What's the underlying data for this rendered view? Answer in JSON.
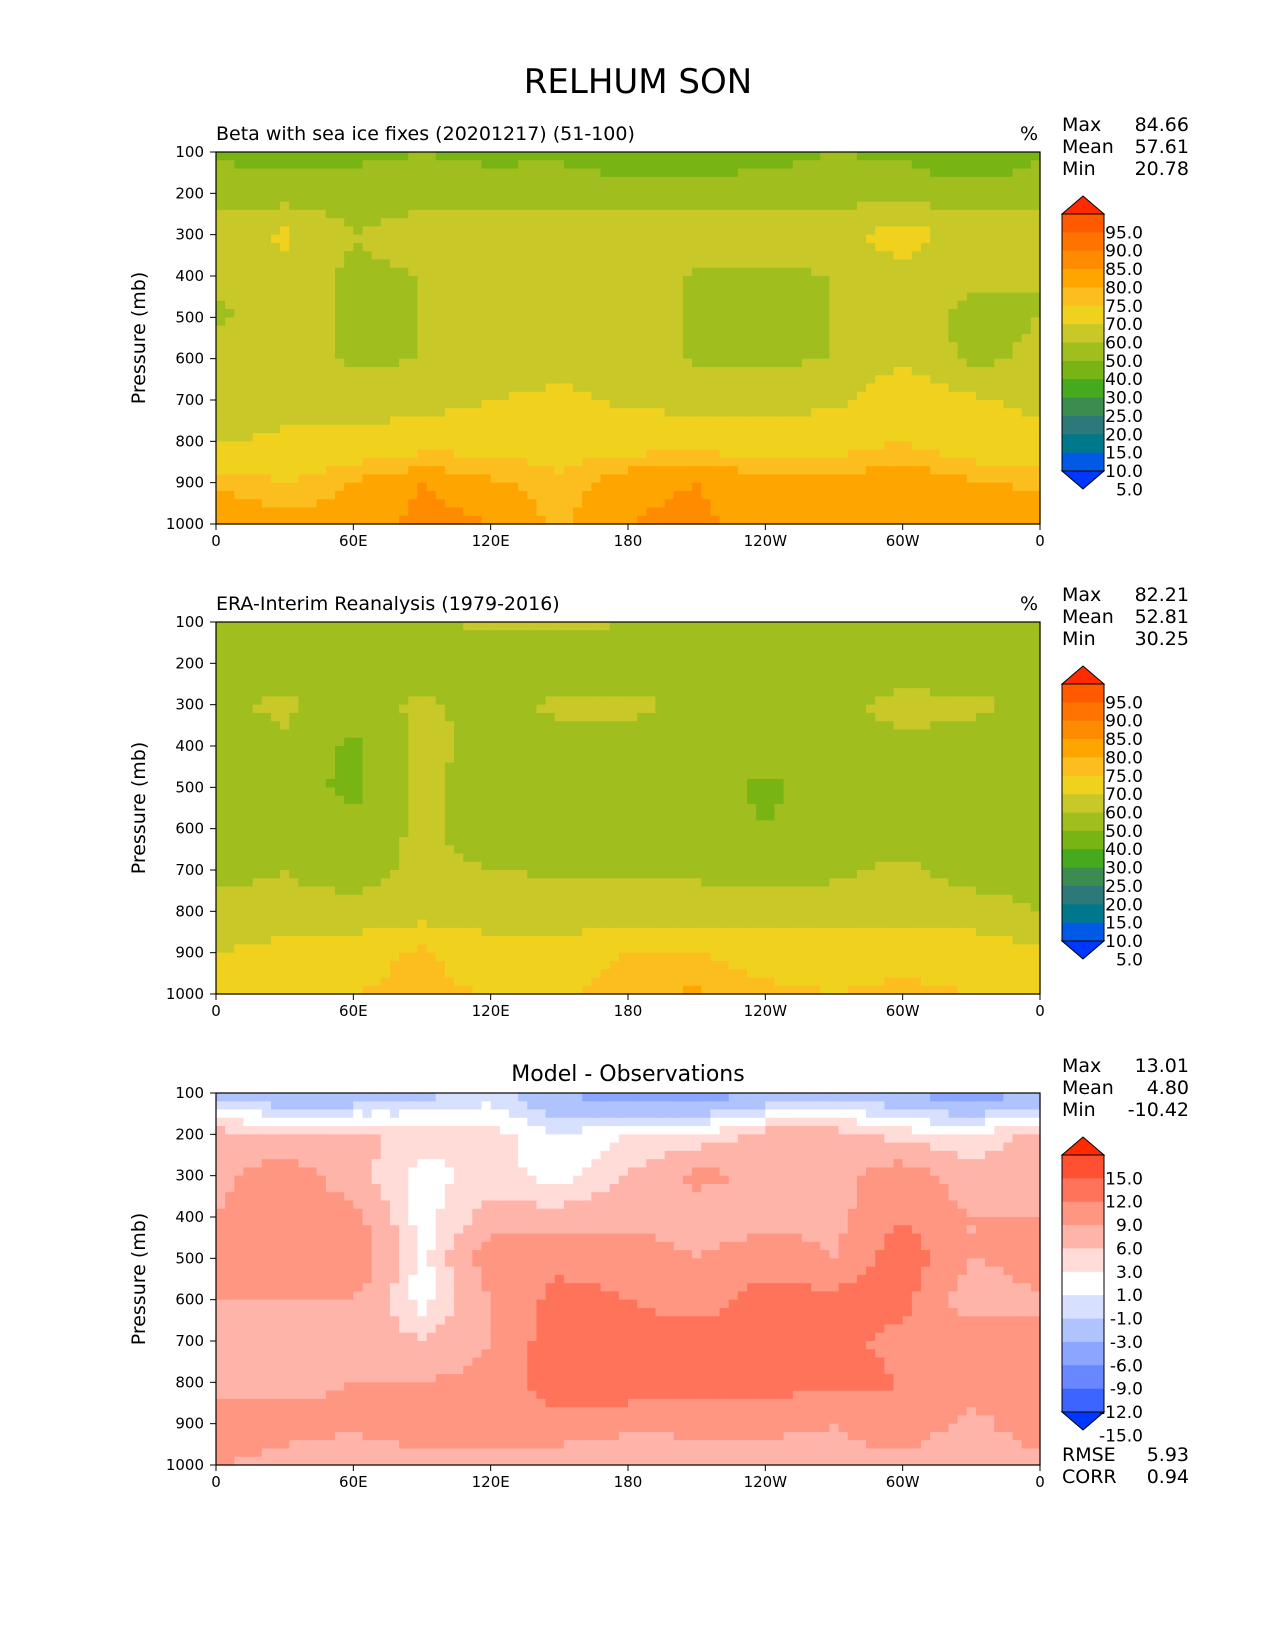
{
  "figure": {
    "title": "RELHUM SON",
    "xticks": [
      "0",
      "60E",
      "120E",
      "180",
      "120W",
      "60W",
      "0"
    ],
    "yticks": [
      "100",
      "200",
      "300",
      "400",
      "500",
      "600",
      "700",
      "800",
      "900",
      "1000"
    ],
    "ylabel": "Pressure (mb)"
  },
  "panels": [
    {
      "id": "model",
      "title": "Beta with sea ice fixes (20201217) (51-100)",
      "units": "%",
      "stats": [
        {
          "label": "Max",
          "value": "84.66"
        },
        {
          "label": "Mean",
          "value": "57.61"
        },
        {
          "label": "Min",
          "value": "20.78"
        }
      ],
      "colorbar": {
        "labels": [
          "95.0",
          "90.0",
          "85.0",
          "80.0",
          "75.0",
          "70.0",
          "60.0",
          "50.0",
          "40.0",
          "30.0",
          "25.0",
          "20.0",
          "15.0",
          "10.0",
          "5.0"
        ],
        "colors": [
          "#ff2a00",
          "#ff5a00",
          "#ff7300",
          "#ff8c00",
          "#ffa500",
          "#fcbe1e",
          "#f0d21e",
          "#c8c828",
          "#a0be1e",
          "#78b414",
          "#46aa1e",
          "#3c8c50",
          "#2d7878",
          "#00788c",
          "#005ae6",
          "#0037ff"
        ]
      }
    },
    {
      "id": "obs",
      "title": "ERA-Interim Reanalysis (1979-2016)",
      "units": "%",
      "stats": [
        {
          "label": "Max",
          "value": "82.21"
        },
        {
          "label": "Mean",
          "value": "52.81"
        },
        {
          "label": "Min",
          "value": "30.25"
        }
      ],
      "colorbar": {
        "labels": [
          "95.0",
          "90.0",
          "85.0",
          "80.0",
          "75.0",
          "70.0",
          "60.0",
          "50.0",
          "40.0",
          "30.0",
          "25.0",
          "20.0",
          "15.0",
          "10.0",
          "5.0"
        ],
        "colors": [
          "#ff2a00",
          "#ff5a00",
          "#ff7300",
          "#ff8c00",
          "#ffa500",
          "#fcbe1e",
          "#f0d21e",
          "#c8c828",
          "#a0be1e",
          "#78b414",
          "#46aa1e",
          "#3c8c50",
          "#2d7878",
          "#00788c",
          "#005ae6",
          "#0037ff"
        ]
      }
    },
    {
      "id": "diff",
      "title": "Model - Observations",
      "units": "",
      "stats": [
        {
          "label": "Max",
          "value": "13.01"
        },
        {
          "label": "Mean",
          "value": "4.80"
        },
        {
          "label": "Min",
          "value": "-10.42"
        }
      ],
      "extra_stats": [
        {
          "label": "RMSE",
          "value": "5.93"
        },
        {
          "label": "CORR",
          "value": "0.94"
        }
      ],
      "colorbar": {
        "labels": [
          "15.0",
          "12.0",
          "9.0",
          "6.0",
          "3.0",
          "1.0",
          "-1.0",
          "-3.0",
          "-6.0",
          "-9.0",
          "-12.0",
          "-15.0"
        ],
        "colors": [
          "#ff2a00",
          "#ff5032",
          "#ff735a",
          "#ff9682",
          "#ffb4aa",
          "#ffdcd7",
          "#ffffff",
          "#d7e1ff",
          "#afc3ff",
          "#8ca5ff",
          "#6987ff",
          "#3c64ff",
          "#0037ff"
        ]
      }
    }
  ],
  "chart_data": [
    {
      "type": "heatmap",
      "title": "Beta with sea ice fixes (20201217) (51-100)",
      "ylabel": "Pressure (mb)",
      "x_ticks": [
        "0",
        "60E",
        "120E",
        "180",
        "120W",
        "60W",
        "0"
      ],
      "xlim": [
        0,
        360
      ],
      "ylim": [
        1000,
        100
      ],
      "levels": [
        5,
        10,
        15,
        20,
        25,
        30,
        40,
        50,
        60,
        70,
        75,
        80,
        85,
        90,
        95
      ],
      "pressure": [
        100,
        200,
        300,
        400,
        500,
        600,
        700,
        800,
        900,
        1000
      ],
      "longitude": [
        0,
        30,
        60,
        90,
        120,
        150,
        180,
        210,
        240,
        270,
        300,
        330,
        360
      ],
      "values": [
        [
          38,
          36,
          37,
          40,
          37,
          38,
          32,
          32,
          36,
          40,
          38,
          30,
          38
        ],
        [
          46,
          45,
          46,
          46,
          46,
          46,
          45,
          45,
          46,
          46,
          46,
          45,
          46
        ],
        [
          55,
          62,
          50,
          55,
          56,
          55,
          55,
          55,
          57,
          56,
          65,
          55,
          55
        ],
        [
          52,
          56,
          48,
          50,
          54,
          55,
          55,
          49,
          48,
          50,
          58,
          52,
          50
        ],
        [
          48,
          56,
          48,
          50,
          54,
          55,
          55,
          49,
          48,
          50,
          58,
          46,
          50
        ],
        [
          54,
          56,
          48,
          50,
          54,
          55,
          55,
          49,
          48,
          50,
          60,
          47,
          53
        ],
        [
          56,
          56,
          55,
          56,
          60,
          63,
          58,
          57,
          56,
          58,
          66,
          62,
          57
        ],
        [
          59,
          62,
          63,
          66,
          67,
          65,
          66,
          66,
          66,
          66,
          70,
          64,
          63
        ],
        [
          74,
          70,
          76,
          80,
          76,
          72,
          79,
          80,
          78,
          76,
          80,
          76,
          74
        ],
        [
          80,
          78,
          76,
          82,
          80,
          74,
          80,
          81,
          78,
          78,
          80,
          78,
          78
        ]
      ]
    },
    {
      "type": "heatmap",
      "title": "ERA-Interim Reanalysis (1979-2016)",
      "ylabel": "Pressure (mb)",
      "x_ticks": [
        "0",
        "60E",
        "120E",
        "180",
        "120W",
        "60W",
        "0"
      ],
      "xlim": [
        0,
        360
      ],
      "ylim": [
        1000,
        100
      ],
      "levels": [
        5,
        10,
        15,
        20,
        25,
        30,
        40,
        50,
        60,
        70,
        75,
        80,
        85,
        90,
        95
      ],
      "pressure": [
        100,
        200,
        300,
        400,
        500,
        600,
        700,
        800,
        900,
        1000
      ],
      "longitude": [
        0,
        30,
        60,
        90,
        120,
        150,
        180,
        210,
        240,
        270,
        300,
        330,
        360
      ],
      "values": [
        [
          42,
          44,
          45,
          48,
          52,
          52,
          50,
          48,
          44,
          44,
          48,
          46,
          44
        ],
        [
          42,
          42,
          42,
          44,
          44,
          44,
          44,
          44,
          42,
          42,
          44,
          44,
          42
        ],
        [
          48,
          52,
          46,
          52,
          46,
          52,
          52,
          48,
          46,
          48,
          53,
          52,
          48
        ],
        [
          46,
          48,
          38,
          52,
          48,
          47,
          46,
          46,
          45,
          46,
          48,
          46,
          46
        ],
        [
          46,
          45,
          37,
          52,
          45,
          45,
          46,
          44,
          38,
          45,
          46,
          46,
          42
        ],
        [
          46,
          45,
          44,
          52,
          45,
          45,
          46,
          44,
          40,
          45,
          46,
          46,
          46
        ],
        [
          48,
          50,
          46,
          52,
          50,
          49,
          48,
          48,
          46,
          48,
          52,
          46,
          46
        ],
        [
          52,
          52,
          53,
          55,
          56,
          54,
          55,
          55,
          54,
          55,
          57,
          54,
          50
        ],
        [
          60,
          64,
          66,
          72,
          63,
          64,
          70,
          70,
          66,
          65,
          67,
          66,
          62
        ],
        [
          68,
          70,
          70,
          72,
          70,
          68,
          74,
          76,
          72,
          70,
          72,
          70,
          70
        ]
      ]
    },
    {
      "type": "heatmap",
      "title": "Model - Observations",
      "ylabel": "Pressure (mb)",
      "x_ticks": [
        "0",
        "60E",
        "120E",
        "180",
        "120W",
        "60W",
        "0"
      ],
      "xlim": [
        0,
        360
      ],
      "ylim": [
        1000,
        100
      ],
      "levels": [
        -15,
        -12,
        -9,
        -6,
        -3,
        -1,
        1,
        3,
        6,
        9,
        12,
        15
      ],
      "pressure": [
        100,
        200,
        300,
        400,
        500,
        600,
        700,
        800,
        900,
        1000
      ],
      "longitude": [
        0,
        30,
        60,
        90,
        120,
        150,
        180,
        210,
        240,
        270,
        300,
        330,
        360
      ],
      "values": [
        [
          -4,
          -6,
          -6,
          -4,
          -2,
          -6,
          -8,
          -8,
          -6,
          -4,
          -6,
          -8,
          -6
        ],
        [
          4,
          3,
          4,
          2,
          2,
          -1,
          1,
          1,
          4,
          4,
          2,
          1,
          4
        ],
        [
          5,
          8,
          4,
          0,
          2,
          0,
          3,
          7,
          5,
          5,
          8,
          4,
          5
        ],
        [
          6,
          8,
          7,
          0,
          4,
          4,
          5,
          4,
          5,
          5,
          9,
          6,
          6
        ],
        [
          6,
          9,
          9,
          0,
          8,
          8,
          8,
          6,
          8,
          6,
          11,
          6,
          7
        ],
        [
          6,
          6,
          6,
          0,
          6,
          10,
          9,
          8,
          10,
          10,
          10,
          4,
          6
        ],
        [
          5,
          4,
          5,
          3,
          6,
          11,
          10,
          10,
          10,
          10,
          8,
          8,
          6
        ],
        [
          5,
          5,
          6,
          6,
          7,
          11,
          11,
          10,
          10,
          10,
          9,
          8,
          6
        ],
        [
          8,
          7,
          7,
          8,
          6,
          8,
          7,
          7,
          7,
          6,
          8,
          5,
          8
        ],
        [
          6,
          5,
          3,
          5,
          6,
          4,
          3,
          4,
          4,
          5,
          5,
          4,
          5
        ]
      ]
    }
  ]
}
